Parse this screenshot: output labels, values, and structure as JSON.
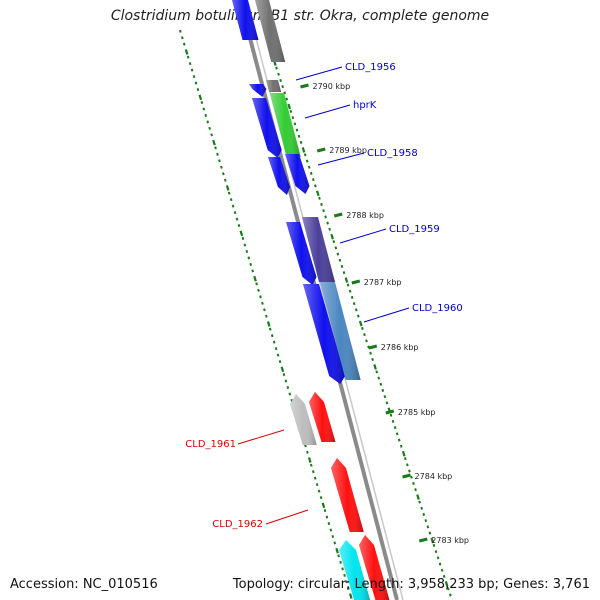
{
  "title": "Clostridium botulinum B1 str. Okra, complete genome",
  "accession_text": "Accession: NC_010516",
  "summary_text": "Topology: circular; Length: 3,958,233 bp; Genes: 3,761",
  "colors": {
    "backbone": "#8a8a8a",
    "gc_track": "#1a7a1a",
    "forward_label": "#0000cc",
    "reverse_label": "#dd0000"
  },
  "kbp_ticks": [
    "2790 kbp",
    "2789 kbp",
    "2788 kbp",
    "2787 kbp",
    "2786 kbp",
    "2785 kbp",
    "2784 kbp",
    "2783 kbp"
  ],
  "genes": [
    {
      "name": "CLD_1956",
      "strand": "forward",
      "color": "#0000cc"
    },
    {
      "name": "hprK",
      "strand": "forward",
      "color": "#0000cc"
    },
    {
      "name": "CLD_1958",
      "strand": "forward",
      "color": "#0000cc"
    },
    {
      "name": "CLD_1959",
      "strand": "forward",
      "color": "#0000cc"
    },
    {
      "name": "CLD_1960",
      "strand": "forward",
      "color": "#0000cc"
    },
    {
      "name": "CLD_1961",
      "strand": "reverse",
      "color": "#dd0000"
    },
    {
      "name": "CLD_1962",
      "strand": "reverse",
      "color": "#dd0000"
    }
  ],
  "feature_colors": {
    "cds_forward": "#1010ee",
    "cds_reverse": "#ff1010",
    "grey": "#707070",
    "light_grey": "#bdbdbd",
    "green": "#33cc33",
    "slate": "#4a3f9a",
    "steel": "#4a86c0",
    "cyan": "#00e5f0"
  }
}
